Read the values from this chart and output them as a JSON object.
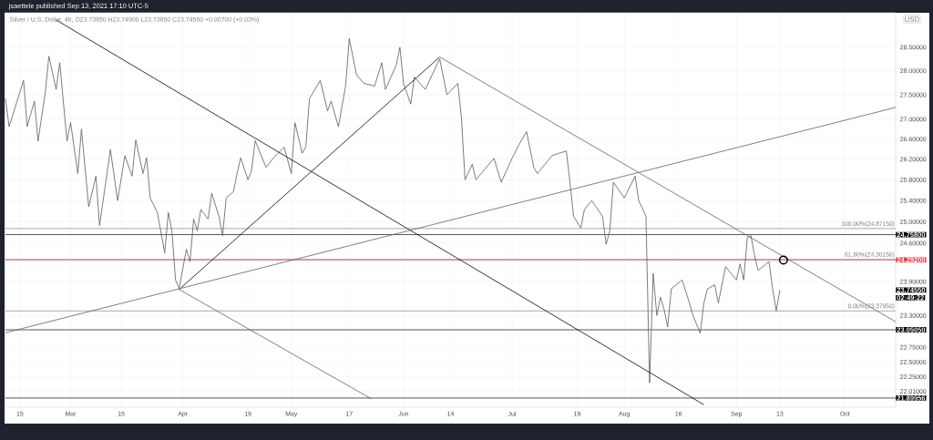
{
  "chart_data": {
    "type": "line",
    "title": "jsaettele published Sep 13, 2021 17:10 UTC-5",
    "subtitle": "Silver / U.S. Dollar, 4h, O23.73850 H23.74900 L23.73850 C23.74550 +0.00700 (+0.03%)",
    "ylabel": "USD",
    "log": "y",
    "grid": true,
    "legend": false,
    "xlim": [
      "2021-02-11",
      "2021-10-15"
    ],
    "ylim": [
      21.75,
      29.25
    ],
    "xticks": [
      {
        "value": "2021-02-15",
        "label": "15"
      },
      {
        "value": "2021-03-01",
        "label": "Mar"
      },
      {
        "value": "2021-03-15",
        "label": "15"
      },
      {
        "value": "2021-04-01",
        "label": "Apr"
      },
      {
        "value": "2021-04-19",
        "label": "19"
      },
      {
        "value": "2021-05-01",
        "label": "May"
      },
      {
        "value": "2021-05-17",
        "label": "17"
      },
      {
        "value": "2021-06-01",
        "label": "Jun"
      },
      {
        "value": "2021-06-14",
        "label": "14"
      },
      {
        "value": "2021-07-01",
        "label": "Jul"
      },
      {
        "value": "2021-07-19",
        "label": "19"
      },
      {
        "value": "2021-08-01",
        "label": "Aug"
      },
      {
        "value": "2021-08-16",
        "label": "16"
      },
      {
        "value": "2021-09-01",
        "label": "Sep"
      },
      {
        "value": "2021-09-13",
        "label": "13"
      },
      {
        "value": "2021-10-01",
        "label": "Oct"
      }
    ],
    "yticks": [
      {
        "value": 28.5,
        "label": "28.50000"
      },
      {
        "value": 28,
        "label": "28.00000"
      },
      {
        "value": 27.5,
        "label": "27.50000"
      },
      {
        "value": 27,
        "label": "27.00000"
      },
      {
        "value": 26.6,
        "label": "26.60000"
      },
      {
        "value": 26.2,
        "label": "26.20000"
      },
      {
        "value": 25.8,
        "label": "25.80000"
      },
      {
        "value": 25.4,
        "label": "25.40000"
      },
      {
        "value": 25,
        "label": "25.00000"
      },
      {
        "value": 24.6,
        "label": "24.60000"
      },
      {
        "value": 23.9,
        "label": "23.90000"
      },
      {
        "value": 23.3,
        "label": "23.30000"
      },
      {
        "value": 22.75,
        "label": "22.75000"
      },
      {
        "value": 22.5,
        "label": "22.50000"
      },
      {
        "value": 22.25,
        "label": "22.25000"
      },
      {
        "value": 22.01,
        "label": "22.01000"
      }
    ],
    "series": [
      {
        "color": "#5a5a5a",
        "x": [
          "2021-02-11",
          "2021-02-12",
          "2021-02-16",
          "2021-02-17",
          "2021-02-19",
          "2021-02-20",
          "2021-02-22",
          "2021-02-23",
          "2021-02-25",
          "2021-02-26",
          "2021-02-28",
          "2021-03-01",
          "2021-03-03",
          "2021-03-04",
          "2021-03-06",
          "2021-03-08",
          "2021-03-09",
          "2021-03-12",
          "2021-03-14",
          "2021-03-16",
          "2021-03-18",
          "2021-03-19",
          "2021-03-21",
          "2021-03-22",
          "2021-03-23",
          "2021-03-25",
          "2021-03-27",
          "2021-03-28",
          "2021-03-29",
          "2021-03-30",
          "2021-03-31",
          "2021-04-02",
          "2021-04-03",
          "2021-04-04",
          "2021-04-05",
          "2021-04-06",
          "2021-04-08",
          "2021-04-09",
          "2021-04-11",
          "2021-04-12",
          "2021-04-13",
          "2021-04-15",
          "2021-04-16",
          "2021-04-17",
          "2021-04-19",
          "2021-04-20",
          "2021-04-21",
          "2021-04-24",
          "2021-04-26",
          "2021-04-29",
          "2021-05-01",
          "2021-05-02",
          "2021-05-04",
          "2021-05-05",
          "2021-05-06",
          "2021-05-09",
          "2021-05-11",
          "2021-05-12",
          "2021-05-14",
          "2021-05-16",
          "2021-05-17",
          "2021-05-19",
          "2021-05-21",
          "2021-05-24",
          "2021-05-26",
          "2021-05-27",
          "2021-05-30",
          "2021-05-31",
          "2021-06-01",
          "2021-06-03",
          "2021-06-04",
          "2021-06-07",
          "2021-06-11",
          "2021-06-13",
          "2021-06-16",
          "2021-06-17",
          "2021-06-18",
          "2021-06-20",
          "2021-06-21",
          "2021-06-26",
          "2021-06-28",
          "2021-07-01",
          "2021-07-03",
          "2021-07-05",
          "2021-07-07",
          "2021-07-08",
          "2021-07-12",
          "2021-07-14",
          "2021-07-16",
          "2021-07-17",
          "2021-07-18",
          "2021-07-20",
          "2021-07-21",
          "2021-07-23",
          "2021-07-26",
          "2021-07-27",
          "2021-07-28",
          "2021-07-29",
          "2021-08-01",
          "2021-08-04",
          "2021-08-05",
          "2021-08-07",
          "2021-08-08",
          "2021-08-09",
          "2021-08-10",
          "2021-08-11",
          "2021-08-12",
          "2021-08-13",
          "2021-08-14",
          "2021-08-17",
          "2021-08-19",
          "2021-08-20",
          "2021-08-22",
          "2021-08-23",
          "2021-08-24",
          "2021-08-26",
          "2021-08-27",
          "2021-08-29",
          "2021-09-01",
          "2021-09-02",
          "2021-09-03",
          "2021-09-04",
          "2021-09-05",
          "2021-09-06",
          "2021-09-07",
          "2021-09-10",
          "2021-09-11",
          "2021-09-12",
          "2021-09-13"
        ],
        "values": [
          27.42,
          26.85,
          27.8,
          26.85,
          27.37,
          26.56,
          27.55,
          28.31,
          27.61,
          28.17,
          26.56,
          26.93,
          25.92,
          26.8,
          25.28,
          25.87,
          24.93,
          26.39,
          25.4,
          26.27,
          25.87,
          26.58,
          25.92,
          26.23,
          25.45,
          25.17,
          24.42,
          25.17,
          24.83,
          23.93,
          23.78,
          24.49,
          24.26,
          25.05,
          24.83,
          25.23,
          25.05,
          25.54,
          25.1,
          24.74,
          25.45,
          25.57,
          25.92,
          26.23,
          25.8,
          25.97,
          26.57,
          26.04,
          26.22,
          26.44,
          25.92,
          26.93,
          26.32,
          26.44,
          27.42,
          27.8,
          27.17,
          27.37,
          26.85,
          27.68,
          28.69,
          27.92,
          27.74,
          27.68,
          28.17,
          27.61,
          28.12,
          28.5,
          27.74,
          27.31,
          27.87,
          27.61,
          28.25,
          27.5,
          27.74,
          27.04,
          25.8,
          26.1,
          25.8,
          26.22,
          25.75,
          26.22,
          26.5,
          26.75,
          26.04,
          25.92,
          26.27,
          26.32,
          26.36,
          25.75,
          25.1,
          24.88,
          25.23,
          25.4,
          25.1,
          24.58,
          24.83,
          25.75,
          25.45,
          25.87,
          25.4,
          25.1,
          22.15,
          24.05,
          23.3,
          23.62,
          23.41,
          23.1,
          23.77,
          23.93,
          23.52,
          23.3,
          22.99,
          23.52,
          23.77,
          23.84,
          23.52,
          24.17,
          23.93,
          24.22,
          23.93,
          24.7,
          24.74,
          24.38,
          24.1,
          24.26,
          23.77,
          23.38,
          23.75
        ]
      },
      {
        "type": "line",
        "color": "#000000",
        "x": [
          "2021-02-25",
          "2021-08-23"
        ],
        "values": [
          29.09,
          21.79
        ]
      },
      {
        "type": "line",
        "color": "#000000",
        "x": [
          "2021-03-31",
          "2021-06-11"
        ],
        "values": [
          23.76,
          28.29
        ]
      },
      {
        "type": "line",
        "color": "#5d606b",
        "x": [
          "2021-02-11",
          "2021-10-15"
        ],
        "values": [
          23.0,
          27.24
        ]
      },
      {
        "type": "line",
        "color": "#5d606b",
        "x": [
          "2021-06-11",
          "2021-10-15"
        ],
        "values": [
          28.29,
          23.19
        ]
      },
      {
        "type": "line",
        "color": "#5d606b",
        "x": [
          "2021-03-31",
          "2021-05-23"
        ],
        "values": [
          23.76,
          21.89
        ]
      },
      {
        "type": "scatter",
        "marker": "circle",
        "color": "#000000",
        "x": [
          "2021-09-14"
        ],
        "values": [
          24.29
        ]
      }
    ],
    "ref_lines": [
      {
        "axis": "y",
        "value": 24.758,
        "label": "24.75800",
        "color": "#000000"
      },
      {
        "axis": "y",
        "value": 24.292,
        "label": "24.29200",
        "color": "#f23645"
      },
      {
        "axis": "y",
        "value": 23.0505,
        "label": "23.05050",
        "color": "#000000"
      },
      {
        "axis": "y",
        "value": 21.89956,
        "label": "21.89956",
        "color": "#000000"
      },
      {
        "axis": "y",
        "value": 24.8715,
        "label": "100.00%(24.87150)"
      },
      {
        "axis": "y",
        "value": 24.30156,
        "label": "61.80%(24.30156)"
      },
      {
        "axis": "y",
        "value": 23.3795,
        "label": "0.00%(23.37950)"
      }
    ],
    "annotations": [
      "23.74550",
      "02:49:22"
    ]
  }
}
